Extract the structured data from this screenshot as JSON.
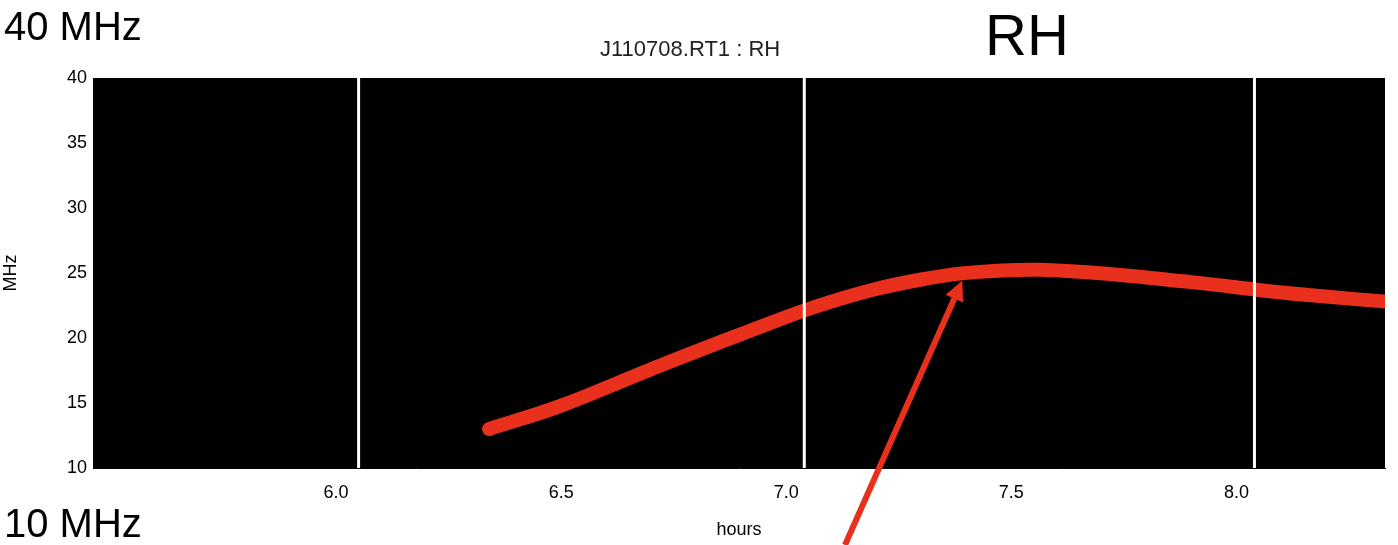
{
  "chart_data": {
    "type": "line",
    "title": "J110708.RT1 : RH",
    "annotations": [
      "40 MHz",
      "10 MHz",
      "RH"
    ],
    "x_label": "hours",
    "y_label": "MHz",
    "series": [
      {
        "color": "#e8301c",
        "x": [
          6.34,
          6.5,
          6.7,
          6.9,
          7.1,
          7.3,
          7.48,
          7.65,
          7.9,
          8.1,
          8.33
        ],
        "values": [
          13.0,
          14.8,
          17.6,
          20.3,
          22.8,
          24.5,
          25.2,
          25.1,
          24.3,
          23.5,
          22.8
        ]
      }
    ],
    "vertical_lines": [
      6.05,
      7.04,
      8.04
    ],
    "vertical_line_color": "#ffffff",
    "xlim": [
      5.46,
      8.33
    ],
    "xticks": [
      {
        "value": 6,
        "label": "6.0"
      },
      {
        "value": 6.5,
        "label": "6.5"
      },
      {
        "value": 7,
        "label": "7.0"
      },
      {
        "value": 7.5,
        "label": "7.5"
      },
      {
        "value": 8,
        "label": "8.0"
      }
    ],
    "ylim": [
      10,
      40
    ],
    "yticks": [
      10,
      15,
      20,
      25,
      30,
      35,
      40
    ],
    "grid": false
  }
}
